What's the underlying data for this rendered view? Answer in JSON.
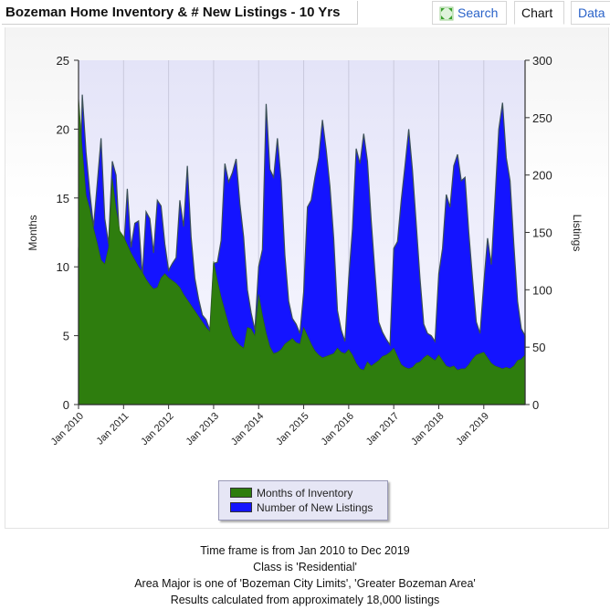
{
  "header": {
    "title": "Bozeman Home Inventory & # New Listings - 10 Yrs",
    "tabs": {
      "search": "Search",
      "chart": "Chart",
      "data": "Data"
    }
  },
  "colors": {
    "inventory": "#2e7d0e",
    "listings": "#1414ff",
    "plot_bg_top": "#e4e4f8",
    "plot_bg_bottom": "#f8f8ff"
  },
  "legend": {
    "inventory_label": "Months of Inventory",
    "listings_label": "Number of New Listings"
  },
  "footer": {
    "line1": "Time frame is from Jan 2010 to Dec 2019",
    "line2": "Class is 'Residential'",
    "line3": "Area Major is one of 'Bozeman City Limits', 'Greater Bozeman Area'",
    "line4": "Results calculated from approximately 18,000 listings"
  },
  "chart_data": {
    "type": "area",
    "title": "Bozeman Home Inventory & # New Listings - 10 Yrs",
    "ylabel_left": "Months",
    "ylabel_right": "Listings",
    "ylim_left": [
      0,
      25
    ],
    "ylim_right": [
      0,
      300
    ],
    "yticks_left": [
      "0",
      "5",
      "10",
      "15",
      "20",
      "25"
    ],
    "yticks_right": [
      "0",
      "50",
      "100",
      "150",
      "200",
      "250",
      "300"
    ],
    "x_labels": [
      "Jan 2010",
      "Jan 2011",
      "Jan 2012",
      "Jan 2013",
      "Jan 2014",
      "Jan 2015",
      "Jan 2016",
      "Jan 2017",
      "Jan 2018",
      "Jan 2019"
    ],
    "series": [
      {
        "name": "Months of Inventory",
        "axis": "left",
        "values": [
          22.4,
          18.5,
          15.2,
          14.2,
          12.8,
          11.7,
          10.5,
          10.2,
          11.4,
          16.4,
          14.2,
          12.6,
          12.2,
          11.6,
          11.0,
          10.5,
          10.0,
          9.6,
          9.1,
          8.7,
          8.4,
          8.5,
          9.2,
          9.5,
          9.2,
          9.0,
          8.8,
          8.5,
          8.0,
          7.6,
          7.2,
          6.8,
          6.4,
          6.0,
          5.6,
          5.3,
          10.4,
          9.0,
          7.8,
          6.8,
          5.8,
          5.0,
          4.6,
          4.3,
          4.1,
          5.6,
          5.5,
          5.0,
          8.0,
          6.5,
          5.2,
          4.2,
          3.7,
          3.8,
          4.0,
          4.4,
          4.6,
          4.8,
          4.5,
          4.4,
          5.6,
          5.0,
          4.4,
          3.9,
          3.6,
          3.4,
          3.5,
          3.6,
          3.7,
          4.1,
          3.8,
          3.7,
          4.0,
          3.6,
          3.0,
          2.6,
          2.5,
          3.1,
          2.8,
          3.0,
          3.2,
          3.5,
          3.6,
          3.8,
          4.1,
          3.5,
          2.9,
          2.7,
          2.6,
          2.7,
          3.0,
          3.1,
          3.4,
          3.6,
          3.4,
          3.2,
          3.6,
          3.2,
          2.8,
          2.7,
          2.8,
          2.5,
          2.6,
          2.6,
          2.9,
          3.3,
          3.6,
          3.7,
          3.8,
          3.4,
          3.0,
          2.8,
          2.7,
          2.6,
          2.7,
          2.6,
          2.8,
          3.2,
          3.3,
          3.6
        ]
      },
      {
        "name": "Number of New Listings",
        "axis": "right",
        "values": [
          135,
          270,
          220,
          185,
          155,
          193,
          232,
          162,
          140,
          212,
          200,
          140,
          133,
          188,
          137,
          158,
          160,
          112,
          168,
          162,
          132,
          178,
          173,
          140,
          117,
          123,
          128,
          178,
          155,
          208,
          146,
          110,
          92,
          78,
          74,
          65,
          123,
          124,
          143,
          210,
          194,
          202,
          214,
          175,
          146,
          100,
          80,
          65,
          120,
          135,
          262,
          205,
          198,
          232,
          195,
          130,
          90,
          75,
          70,
          62,
          98,
          172,
          178,
          198,
          215,
          248,
          222,
          190,
          145,
          82,
          65,
          55,
          110,
          153,
          223,
          210,
          236,
          212,
          160,
          115,
          72,
          63,
          57,
          52,
          136,
          142,
          178,
          208,
          240,
          204,
          157,
          110,
          70,
          62,
          60,
          55,
          114,
          136,
          183,
          172,
          208,
          218,
          195,
          198,
          150,
          110,
          72,
          62,
          106,
          145,
          122,
          180,
          240,
          263,
          215,
          195,
          140,
          90,
          66,
          60
        ]
      }
    ]
  }
}
